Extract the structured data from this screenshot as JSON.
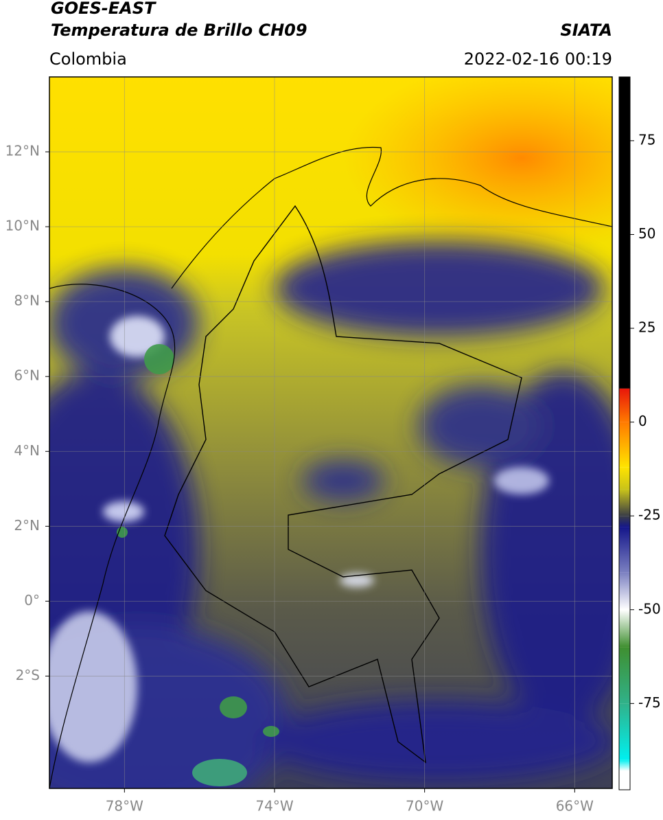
{
  "header": {
    "instrument": "GOES-EAST",
    "product": "Temperatura de Brillo CH09",
    "source": "SIATA",
    "region": "Colombia",
    "datetime": "2022-02-16 00:19"
  },
  "map": {
    "xlim": [
      -80,
      -65
    ],
    "ylim": [
      -5,
      14
    ],
    "grid": true,
    "xticks": [
      {
        "value": -78,
        "label": "78°W"
      },
      {
        "value": -74,
        "label": "74°W"
      },
      {
        "value": -70,
        "label": "70°W"
      },
      {
        "value": -66,
        "label": "66°W"
      }
    ],
    "yticks": [
      {
        "value": 12,
        "label": "12°N"
      },
      {
        "value": 10,
        "label": "10°N"
      },
      {
        "value": 8,
        "label": "8°N"
      },
      {
        "value": 6,
        "label": "6°N"
      },
      {
        "value": 4,
        "label": "4°N"
      },
      {
        "value": 2,
        "label": "2°N"
      },
      {
        "value": 0,
        "label": "0°"
      },
      {
        "value": -2,
        "label": "2°S"
      }
    ]
  },
  "colorbar": {
    "lim": [
      -98,
      92
    ],
    "ticks": [
      75,
      50,
      25,
      0,
      -25,
      -50,
      -75
    ],
    "stops": [
      {
        "value": 92,
        "color": "#000000"
      },
      {
        "value": 9,
        "color": "#000000"
      },
      {
        "value": 8.9,
        "color": "#e8170a"
      },
      {
        "value": 0,
        "color": "#ff7a00"
      },
      {
        "value": -12,
        "color": "#ffe400"
      },
      {
        "value": -18,
        "color": "#c8c21a"
      },
      {
        "value": -25,
        "color": "#3a3d45"
      },
      {
        "value": -28,
        "color": "#14168a"
      },
      {
        "value": -40,
        "color": "#7a7fc0"
      },
      {
        "value": -50,
        "color": "#ffffff"
      },
      {
        "value": -60,
        "color": "#3f8f30"
      },
      {
        "value": -75,
        "color": "#30b28a"
      },
      {
        "value": -90,
        "color": "#00f0f0"
      },
      {
        "value": -93,
        "color": "#ffffff"
      },
      {
        "value": -98,
        "color": "#ffffff"
      }
    ]
  }
}
